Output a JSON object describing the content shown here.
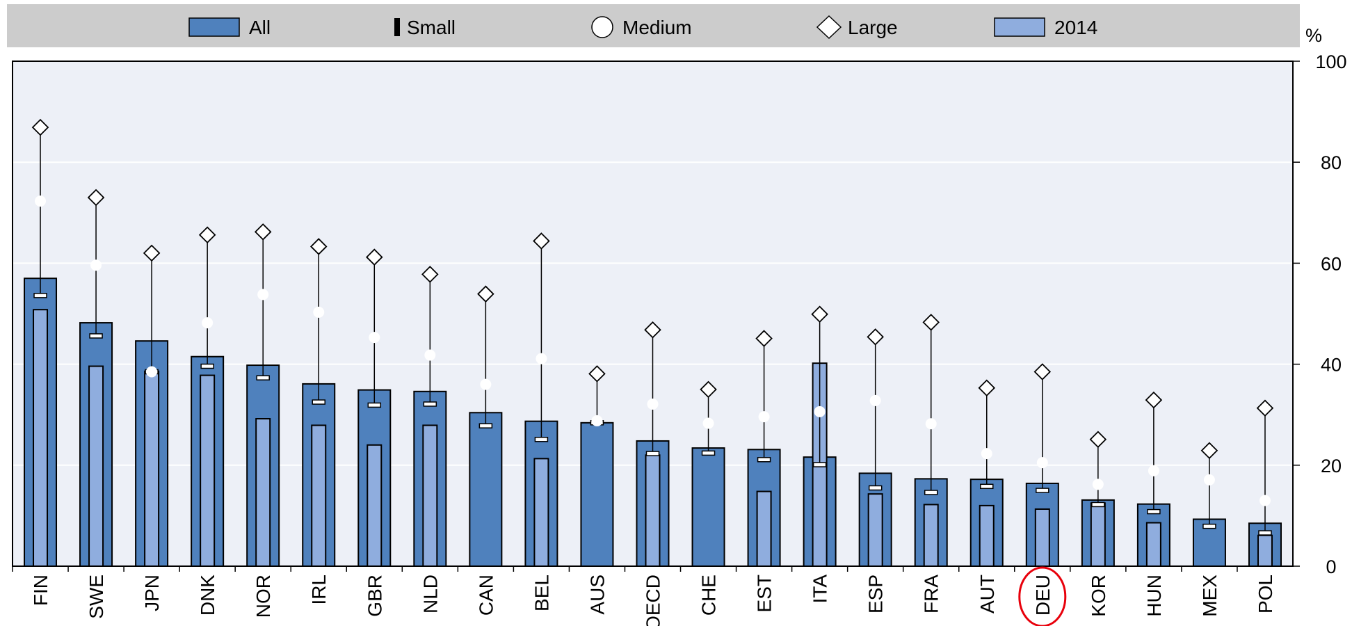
{
  "chart_data": {
    "type": "bar",
    "unit_label": "%",
    "ylim": [
      0,
      100
    ],
    "y_ticks": [
      0,
      20,
      40,
      60,
      80,
      100
    ],
    "categories": [
      "FIN",
      "SWE",
      "JPN",
      "DNK",
      "NOR",
      "IRL",
      "GBR",
      "NLD",
      "CAN",
      "BEL",
      "AUS",
      "OECD",
      "CHE",
      "EST",
      "ITA",
      "ESP",
      "FRA",
      "AUT",
      "DEU",
      "KOR",
      "HUN",
      "MEX",
      "POL"
    ],
    "highlighted_category": "DEU",
    "series": [
      {
        "name": "All",
        "kind": "bar",
        "values": [
          57,
          48.2,
          44.6,
          41.5,
          39.8,
          36.1,
          34.9,
          34.6,
          30.4,
          28.7,
          28.4,
          24.8,
          23.4,
          23.1,
          21.6,
          18.4,
          17.3,
          17.2,
          16.4,
          13.1,
          12.3,
          9.3,
          8.5
        ]
      },
      {
        "name": "Small",
        "kind": "marker",
        "values": [
          53.6,
          45.6,
          38.5,
          39.6,
          37.3,
          32.5,
          31.9,
          32.1,
          27.8,
          25.1,
          28.4,
          22.3,
          22.4,
          21.1,
          20.1,
          15.5,
          14.6,
          15.8,
          15,
          12.2,
          10.8,
          7.9,
          6.6
        ]
      },
      {
        "name": "Medium",
        "kind": "marker",
        "values": [
          72.3,
          59.6,
          38.5,
          48.2,
          53.8,
          50.3,
          45.3,
          41.8,
          36,
          41.1,
          28.8,
          32.1,
          28.3,
          29.6,
          30.6,
          32.8,
          28.2,
          22.3,
          20.5,
          16.2,
          18.9,
          17.1,
          13
        ]
      },
      {
        "name": "Large",
        "kind": "marker",
        "values": [
          86.9,
          73,
          62,
          65.6,
          66.2,
          63.3,
          61.2,
          57.8,
          53.9,
          64.4,
          38.1,
          46.8,
          35,
          45.1,
          49.9,
          45.4,
          48.3,
          35.3,
          38.5,
          25.1,
          32.9,
          22.9,
          31.3
        ]
      },
      {
        "name": "2014",
        "kind": "bar",
        "values": [
          50.8,
          39.6,
          38.6,
          37.8,
          29.2,
          27.9,
          24,
          27.9,
          null,
          21.3,
          null,
          22,
          null,
          14.8,
          40.2,
          14.3,
          12.2,
          12,
          11.3,
          12.5,
          8.6,
          null,
          6.1
        ]
      }
    ],
    "colors": {
      "all_bar": "#4f81bd",
      "bar_2014": "#8fadde",
      "plot_bg": "#edf0f7",
      "legend_bg": "#cccccc",
      "gridline": "#ffffff",
      "highlight_circle": "#e8000b"
    },
    "legend_position": "top"
  }
}
